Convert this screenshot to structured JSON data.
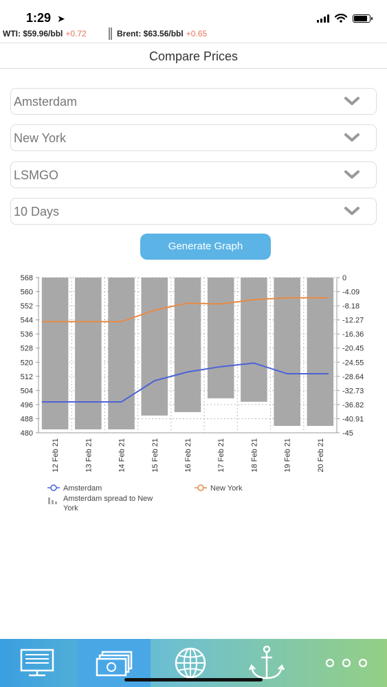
{
  "status": {
    "time": "1:29",
    "location_icon": "location-arrow-icon",
    "signal_icon": "cellular-signal-icon",
    "wifi_icon": "wifi-icon",
    "battery_icon": "battery-icon"
  },
  "ticker": {
    "wti_label": "WTI: $59.96/bbl",
    "wti_change": "+0.72",
    "brent_label": "Brent: $63.56/bbl",
    "brent_change": "+0.65",
    "change_color": "#e8735a"
  },
  "header": {
    "title": "Compare Prices"
  },
  "form": {
    "port1": "Amsterdam",
    "port2": "New York",
    "grade": "LSMGO",
    "period": "10 Days",
    "generate_label": "Generate Graph"
  },
  "chart_data": {
    "type": "bar+line",
    "categories": [
      "12 Feb 21",
      "13 Feb 21",
      "14 Feb 21",
      "15 Feb 21",
      "16 Feb 21",
      "17 Feb 21",
      "18 Feb 21",
      "19 Feb 21",
      "20 Feb 21"
    ],
    "left_axis": {
      "ticks": [
        "568",
        "560",
        "552",
        "544",
        "536",
        "528",
        "520",
        "512",
        "504",
        "496",
        "488",
        "480"
      ],
      "ylim": [
        480,
        568
      ]
    },
    "right_axis": {
      "ticks": [
        "0",
        "-4.09",
        "-8.18",
        "-12.27",
        "-16.36",
        "-20.45",
        "-24.55",
        "-28.64",
        "-32.73",
        "-36.82",
        "-40.91",
        "-45"
      ],
      "ylim": [
        -45,
        0
      ]
    },
    "series": [
      {
        "name": "Amsterdam",
        "axis": "left",
        "kind": "line",
        "color": "#4a63d6",
        "values": [
          497.5,
          497.5,
          497.5,
          509.5,
          514.5,
          517.5,
          519.5,
          513.5,
          513.5
        ]
      },
      {
        "name": "New York",
        "axis": "left",
        "kind": "line",
        "color": "#e88a45",
        "values": [
          543,
          543,
          543,
          549.5,
          553.5,
          553,
          555.5,
          556.5,
          556.5
        ]
      },
      {
        "name": "Amsterdam spread to New York",
        "axis": "right",
        "kind": "bar",
        "color": "#a9a8a9",
        "values": [
          -44,
          -44,
          -44,
          -40,
          -39,
          -35,
          -36,
          -43,
          -43
        ]
      }
    ],
    "legend": [
      {
        "label": "Amsterdam",
        "icon": "line-circle-icon",
        "color": "#4a63d6"
      },
      {
        "label": "New York",
        "icon": "line-circle-icon",
        "color": "#e88a45"
      },
      {
        "label": "Amsterdam spread to New York",
        "icon": "bar-chart-icon",
        "color": "#a9a8a9"
      }
    ],
    "grid": true,
    "legend_position": "bottom-left"
  },
  "tabs": [
    {
      "name": "tab-dashboard",
      "icon": "monitor-icon",
      "active": false
    },
    {
      "name": "tab-prices",
      "icon": "money-icon",
      "active": true
    },
    {
      "name": "tab-world",
      "icon": "globe-icon",
      "active": false
    },
    {
      "name": "tab-ports",
      "icon": "anchor-icon",
      "active": false
    },
    {
      "name": "tab-more",
      "icon": "more-dots-icon",
      "active": false
    }
  ]
}
